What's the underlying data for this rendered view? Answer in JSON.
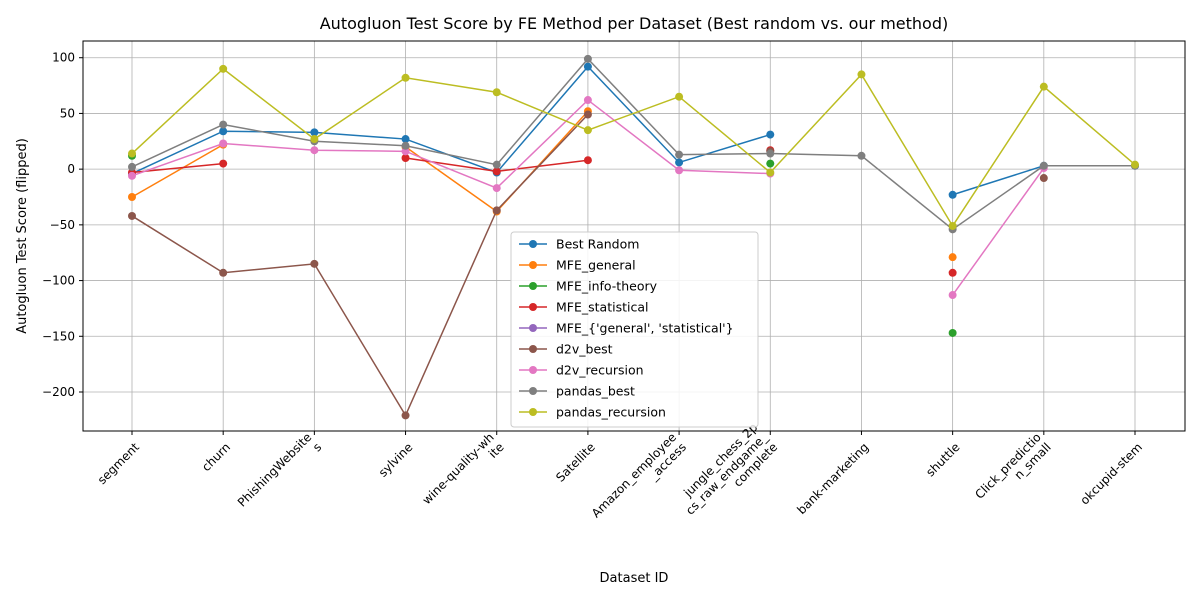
{
  "chart_data": {
    "type": "line",
    "title": "Autogluon Test Score by FE Method per Dataset (Best random vs. our method)",
    "xlabel": "Dataset ID",
    "ylabel": "Autogluon Test Score (flipped)",
    "ylim": [
      -235,
      115
    ],
    "yticks": [
      100,
      50,
      0,
      -50,
      -100,
      -150,
      -200
    ],
    "ytick_labels": [
      "100",
      "50",
      "0",
      "−50",
      "−100",
      "−150",
      "−200"
    ],
    "grid": true,
    "legend_position": "lower-center",
    "categories": [
      [
        "segment"
      ],
      [
        "churn"
      ],
      [
        "PhishingWebsite",
        "s"
      ],
      [
        "sylvine"
      ],
      [
        "wine-quality-wh",
        "ite"
      ],
      [
        "Satellite"
      ],
      [
        "Amazon_employee",
        "_access"
      ],
      [
        "jungle_chess_2p",
        "cs_raw_endgame_",
        "complete"
      ],
      [
        "bank-marketing"
      ],
      [
        "shuttle"
      ],
      [
        "Click_predictio",
        "n_small"
      ],
      [
        "okcupid-stem"
      ]
    ],
    "series": [
      {
        "name": "Best Random",
        "color": "#1f77b4",
        "values": [
          -4,
          34,
          33,
          27,
          -3,
          92,
          6,
          31,
          null,
          -23,
          3,
          3
        ]
      },
      {
        "name": "MFE_general",
        "color": "#ff7f0e",
        "values": [
          -25,
          22,
          null,
          20,
          -38,
          52,
          null,
          null,
          null,
          -79,
          null,
          null
        ]
      },
      {
        "name": "MFE_info-theory",
        "color": "#2ca02c",
        "values": [
          12,
          null,
          null,
          null,
          null,
          null,
          null,
          5,
          null,
          -147,
          null,
          null
        ]
      },
      {
        "name": "MFE_statistical",
        "color": "#d62728",
        "values": [
          -3,
          5,
          null,
          10,
          -2,
          8,
          null,
          17,
          null,
          -93,
          null,
          null
        ]
      },
      {
        "name": "MFE_{'general', 'statistical'}",
        "color": "#9467bd",
        "values": [
          null,
          null,
          null,
          null,
          null,
          null,
          null,
          null,
          null,
          null,
          null,
          null
        ]
      },
      {
        "name": "d2v_best",
        "color": "#8c564b",
        "values": [
          -42,
          -93,
          -85,
          -221,
          -37,
          49,
          null,
          16,
          null,
          null,
          -8,
          null
        ]
      },
      {
        "name": "d2v_recursion",
        "color": "#e377c2",
        "values": [
          -6,
          23,
          17,
          16,
          -17,
          62,
          -1,
          -4,
          null,
          -113,
          1,
          null
        ]
      },
      {
        "name": "pandas_best",
        "color": "#7f7f7f",
        "values": [
          2,
          40,
          25,
          21,
          4,
          99,
          13,
          14,
          12,
          -54,
          3,
          3
        ]
      },
      {
        "name": "pandas_recursion",
        "color": "#bcbd22",
        "values": [
          14,
          90,
          27,
          82,
          69,
          35,
          65,
          -3,
          85,
          -51,
          74,
          4
        ]
      }
    ]
  }
}
